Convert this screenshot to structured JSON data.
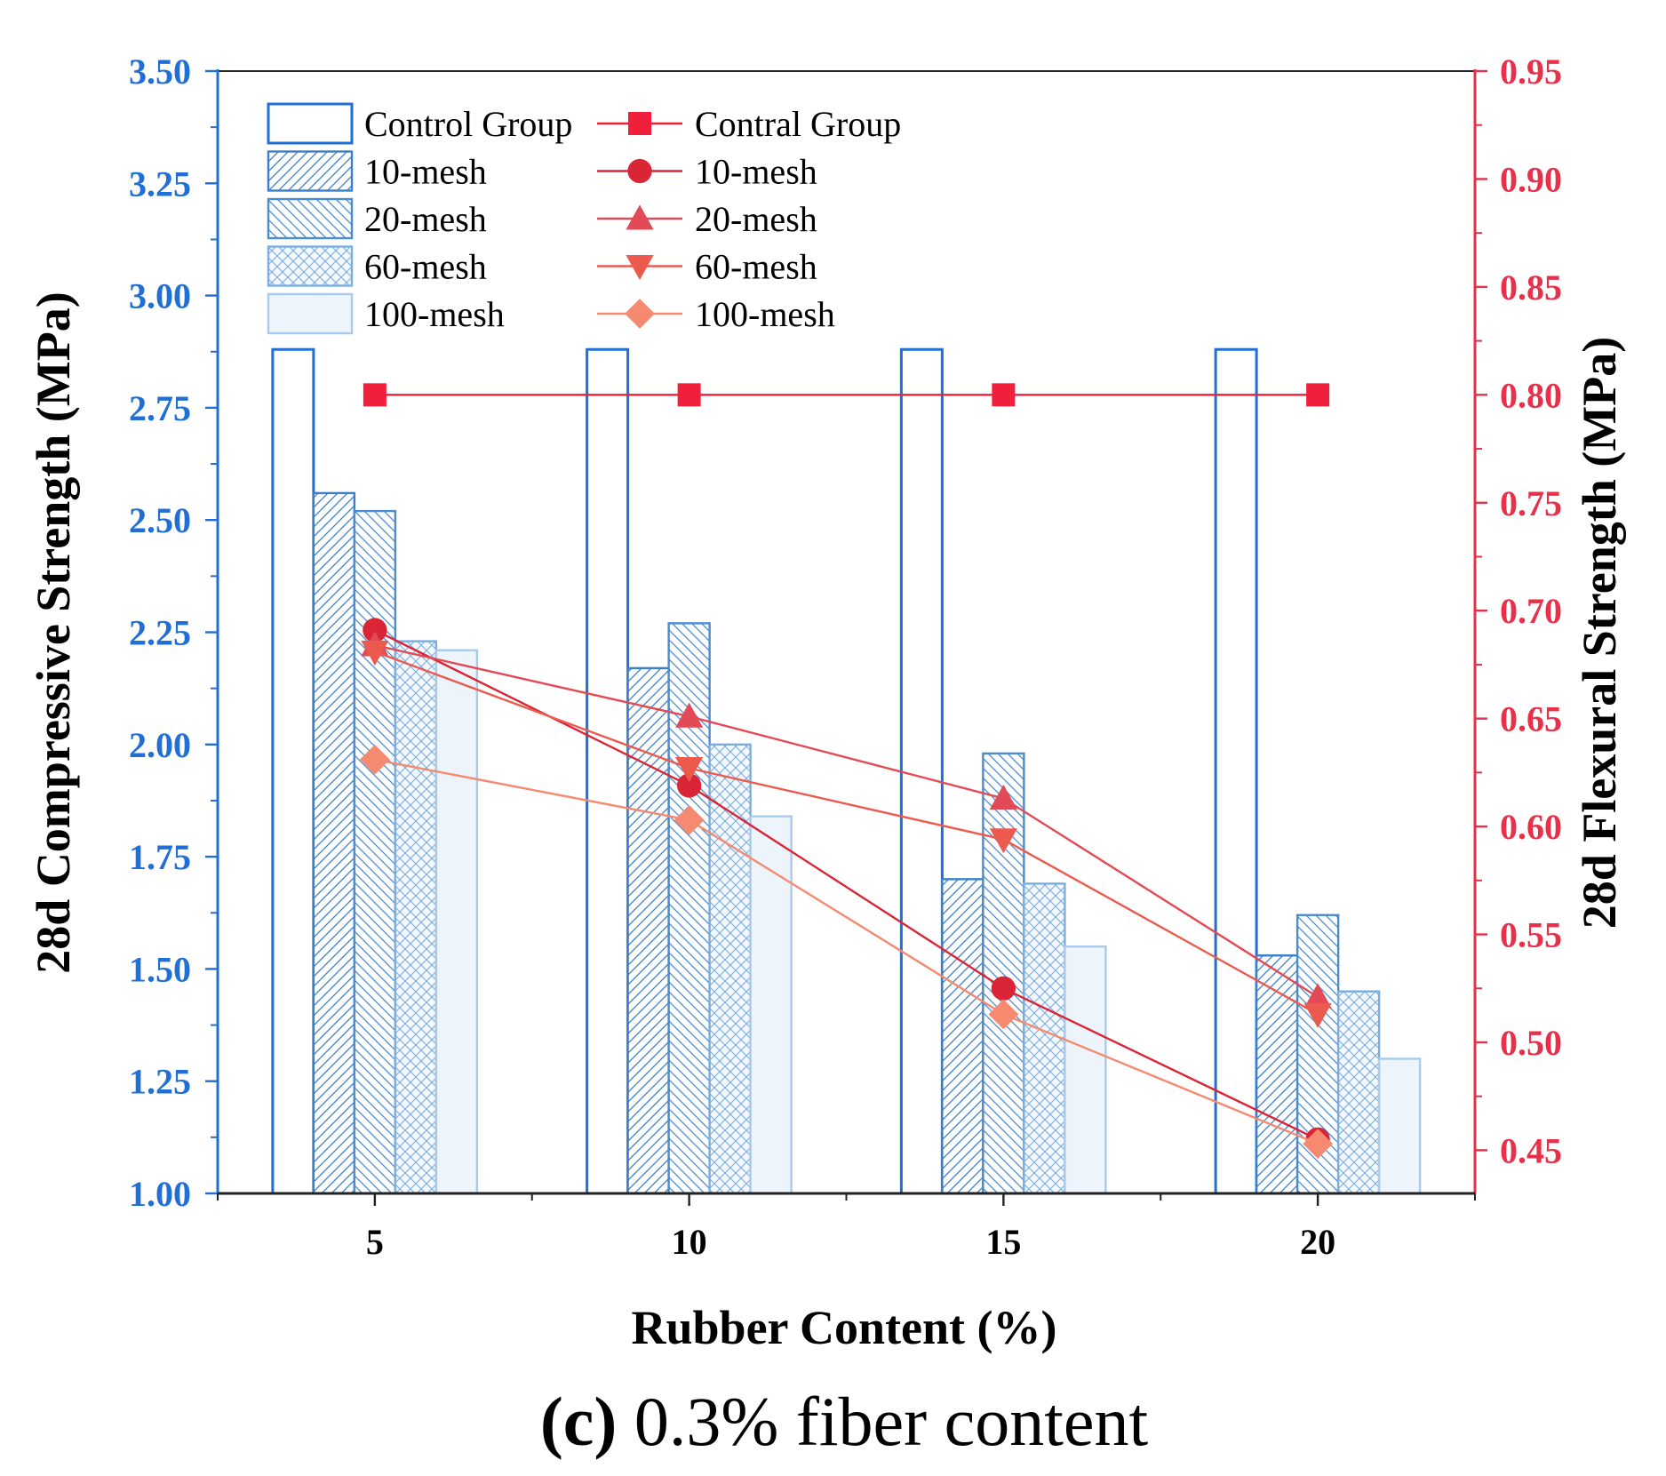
{
  "chart_data": {
    "type": "bar",
    "secondary_type": "line",
    "caption_prefix": "(c)",
    "caption_text": " 0.3% fiber content",
    "xlabel": "Rubber Content (%)",
    "ylabel": "28d Compressive Strength (MPa)",
    "ylabel_right": "28d Flexural Strength (MPa)",
    "categories": [
      "5",
      "10",
      "15",
      "20"
    ],
    "ylim": [
      1.0,
      3.5
    ],
    "ylim_right": [
      0.43,
      0.95
    ],
    "yticks": [
      "1.00",
      "1.25",
      "1.50",
      "1.75",
      "2.00",
      "2.25",
      "2.50",
      "2.75",
      "3.00",
      "3.25",
      "3.50"
    ],
    "yticks_right": [
      "0.45",
      "0.50",
      "0.55",
      "0.60",
      "0.65",
      "0.70",
      "0.75",
      "0.80",
      "0.85",
      "0.90",
      "0.95"
    ],
    "left_axis_color": "#1f6fd6",
    "right_axis_color": "#e8304a",
    "bar_series": [
      {
        "name": "Control Group",
        "values": [
          2.88,
          2.88,
          2.88,
          2.88
        ],
        "pattern": "none"
      },
      {
        "name": "10-mesh",
        "values": [
          2.56,
          2.17,
          1.7,
          1.53
        ],
        "pattern": "forward-hatch"
      },
      {
        "name": "20-mesh",
        "values": [
          2.52,
          2.27,
          1.98,
          1.62
        ],
        "pattern": "back-hatch"
      },
      {
        "name": "60-mesh",
        "values": [
          2.23,
          2.0,
          1.69,
          1.45
        ],
        "pattern": "cross-hatch"
      },
      {
        "name": "100-mesh",
        "values": [
          2.21,
          1.84,
          1.55,
          1.3
        ],
        "pattern": "solid-light"
      }
    ],
    "line_series": [
      {
        "name": "Contral Group",
        "values": [
          0.8,
          0.8,
          0.8,
          0.8
        ],
        "marker": "square",
        "color": "#f0203c"
      },
      {
        "name": "10-mesh",
        "values": [
          0.691,
          0.619,
          0.525,
          0.455
        ],
        "marker": "circle",
        "color": "#d92535"
      },
      {
        "name": "20-mesh",
        "values": [
          0.684,
          0.651,
          0.613,
          0.521
        ],
        "marker": "triangle-up",
        "color": "#e24a55"
      },
      {
        "name": "60-mesh",
        "values": [
          0.681,
          0.627,
          0.594,
          0.513
        ],
        "marker": "triangle-down",
        "color": "#ec5a4e"
      },
      {
        "name": "100-mesh",
        "values": [
          0.631,
          0.603,
          0.513,
          0.453
        ],
        "marker": "diamond",
        "color": "#f58a70"
      }
    ]
  }
}
